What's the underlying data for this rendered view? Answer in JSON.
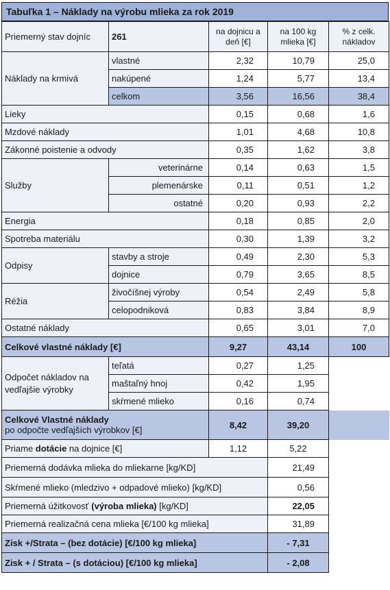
{
  "title": "Tabuľka 1 – Náklady na výrobu mlieka za rok 2019",
  "header": {
    "label": "Priemerný stav dojníc",
    "value": "261",
    "col1": "na dojnicu a deň [€]",
    "col2": "na 100 kg mlieka [€]",
    "col3": "% z celk. nákladov"
  },
  "groups": {
    "krmiva": {
      "label": "Náklady na krmivá",
      "rows": [
        {
          "label": "vlastné",
          "v1": "2,32",
          "v2": "10,79",
          "v3": "25,0"
        },
        {
          "label": "nakúpené",
          "v1": "1,24",
          "v2": "5,77",
          "v3": "13,4"
        },
        {
          "label": "celkom",
          "v1": "3,56",
          "v2": "16,56",
          "v3": "38,4"
        }
      ]
    },
    "sluzby": {
      "label": "Služby",
      "rows": [
        {
          "label": "veterinárne",
          "v1": "0,14",
          "v2": "0,63",
          "v3": "1,5"
        },
        {
          "label": "plemenárske",
          "v1": "0,11",
          "v2": "0,51",
          "v3": "1,2"
        },
        {
          "label": "ostatné",
          "v1": "0,20",
          "v2": "0,93",
          "v3": "2,2"
        }
      ]
    },
    "odpisy": {
      "label": "Odpisy",
      "rows": [
        {
          "label": "stavby a stroje",
          "v1": "0,49",
          "v2": "2,30",
          "v3": "5,3"
        },
        {
          "label": "dojnice",
          "v1": "0,79",
          "v2": "3,65",
          "v3": "8,5"
        }
      ]
    },
    "rezia": {
      "label": "Réžia",
      "rows": [
        {
          "label": "živočíšnej výroby",
          "v1": "0,54",
          "v2": "2,49",
          "v3": "5,8"
        },
        {
          "label": "celopodniková",
          "v1": "0,83",
          "v2": "3,84",
          "v3": "8,9"
        }
      ]
    },
    "odpocet": {
      "label": "Odpočet nákladov na vedľajšie výrobky",
      "rows": [
        {
          "label": "teľatá",
          "v1": "0,27",
          "v2": "1,25"
        },
        {
          "label": "maštaľný hnoj",
          "v1": "0,42",
          "v2": "1,95"
        },
        {
          "label": "skŕmené mlieko",
          "v1": "0,16",
          "v2": "0,74"
        }
      ]
    }
  },
  "singles": {
    "lieky": {
      "label": "Lieky",
      "v1": "0,15",
      "v2": "0,68",
      "v3": "1,6"
    },
    "mzdove": {
      "label": "Mzdové náklady",
      "v1": "1,01",
      "v2": "4,68",
      "v3": "10,8"
    },
    "zakonne": {
      "label": "Zákonné poistenie a odvody",
      "v1": "0,35",
      "v2": "1,62",
      "v3": "3,8"
    },
    "energia": {
      "label": "Energia",
      "v1": "0,18",
      "v2": "0,85",
      "v3": "2,0"
    },
    "spotreba": {
      "label": "Spotreba materiálu",
      "v1": "0,30",
      "v2": "1,39",
      "v3": "3,2"
    },
    "ostatne": {
      "label": "Ostatné náklady",
      "v1": "0,65",
      "v2": "3,01",
      "v3": "7,0"
    }
  },
  "celkove": {
    "label": "Celkové vlastné náklady [€]",
    "v1": "9,27",
    "v2": "43,14",
    "v3": "100"
  },
  "celkove_po": {
    "label_line1": "Celkové Vlastné náklady",
    "label_line2": "po odpočte vedľajších výrobkov [€]",
    "v1": "8,42",
    "v2": "39,20"
  },
  "dotacie": {
    "label_pre": "Priame ",
    "label_bold": "dotácie",
    "label_post": " na dojnice [€]",
    "v1": "1,12",
    "v2": "5,22"
  },
  "bottom": {
    "dodavka": {
      "label": "Priemerná dodávka mlieka do mliekarne [kg/KD]",
      "value": "21,49"
    },
    "skrmene": {
      "label": "Skŕmené mlieko (mledzivo + odpadové mlieko) [kg/KD]",
      "value": "0,56"
    },
    "uzitkovost": {
      "label_pre": "Priemerná úžitkovosť ",
      "label_bold": "(výroba mlieka)",
      "label_post": " [kg/KD]",
      "value": "22,05"
    },
    "cena": {
      "label": "Priemerná realizačná cena mlieka [€/100 kg mlieka]",
      "value": "31,89"
    },
    "zisk_bez": {
      "label": "Zisk +/Strata – (bez dotácie) [€/100 kg mlieka]",
      "value": "- 7,31"
    },
    "zisk_s": {
      "label": "Zisk + / Strata – (s dotáciou) [€/100 kg mlieka]",
      "value": "- 2,08"
    }
  },
  "colors": {
    "header_blue": "#9fb2d9",
    "row_blue": "#b8c6e4",
    "label_bg": "#eef1f8"
  }
}
